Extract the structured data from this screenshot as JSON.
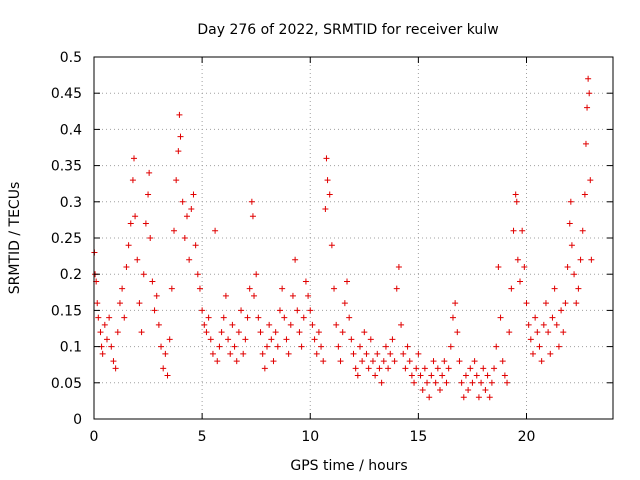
{
  "chart_data": {
    "type": "scatter",
    "title": "Day 276 of 2022, SRMTID for receiver kulw",
    "xlabel": "GPS time / hours",
    "ylabel": "SRMTID / TECUs",
    "xlim": [
      0,
      24
    ],
    "ylim": [
      0,
      0.5
    ],
    "grid": true,
    "marker": "+",
    "color": "#e00000",
    "x_ticks": [
      "0",
      "5",
      "10",
      "15",
      "20"
    ],
    "y_ticks": [
      "0",
      "0.05",
      "0.1",
      "0.15",
      "0.2",
      "0.25",
      "0.3",
      "0.35",
      "0.4",
      "0.45",
      "0.5"
    ],
    "series": [
      {
        "name": "SRMTID",
        "points": [
          [
            0.02,
            0.23
          ],
          [
            0.05,
            0.2
          ],
          [
            0.1,
            0.19
          ],
          [
            0.15,
            0.16
          ],
          [
            0.2,
            0.14
          ],
          [
            0.3,
            0.12
          ],
          [
            0.35,
            0.1
          ],
          [
            0.4,
            0.09
          ],
          [
            0.5,
            0.13
          ],
          [
            0.6,
            0.11
          ],
          [
            0.7,
            0.14
          ],
          [
            0.8,
            0.1
          ],
          [
            0.9,
            0.08
          ],
          [
            1.0,
            0.07
          ],
          [
            1.1,
            0.12
          ],
          [
            1.2,
            0.16
          ],
          [
            1.3,
            0.18
          ],
          [
            1.4,
            0.14
          ],
          [
            1.5,
            0.21
          ],
          [
            1.6,
            0.24
          ],
          [
            1.7,
            0.27
          ],
          [
            1.8,
            0.33
          ],
          [
            1.85,
            0.36
          ],
          [
            1.9,
            0.28
          ],
          [
            2.0,
            0.22
          ],
          [
            2.1,
            0.16
          ],
          [
            2.2,
            0.12
          ],
          [
            2.3,
            0.2
          ],
          [
            2.4,
            0.27
          ],
          [
            2.5,
            0.31
          ],
          [
            2.55,
            0.34
          ],
          [
            2.6,
            0.25
          ],
          [
            2.7,
            0.19
          ],
          [
            2.8,
            0.15
          ],
          [
            2.9,
            0.17
          ],
          [
            3.0,
            0.13
          ],
          [
            3.1,
            0.1
          ],
          [
            3.2,
            0.07
          ],
          [
            3.3,
            0.09
          ],
          [
            3.4,
            0.06
          ],
          [
            3.5,
            0.11
          ],
          [
            3.6,
            0.18
          ],
          [
            3.7,
            0.26
          ],
          [
            3.8,
            0.33
          ],
          [
            3.9,
            0.37
          ],
          [
            3.95,
            0.42
          ],
          [
            4.0,
            0.39
          ],
          [
            4.1,
            0.3
          ],
          [
            4.2,
            0.25
          ],
          [
            4.3,
            0.28
          ],
          [
            4.4,
            0.22
          ],
          [
            4.5,
            0.29
          ],
          [
            4.6,
            0.31
          ],
          [
            4.7,
            0.24
          ],
          [
            4.8,
            0.2
          ],
          [
            4.9,
            0.18
          ],
          [
            5.0,
            0.15
          ],
          [
            5.1,
            0.13
          ],
          [
            5.2,
            0.12
          ],
          [
            5.3,
            0.14
          ],
          [
            5.4,
            0.11
          ],
          [
            5.5,
            0.09
          ],
          [
            5.6,
            0.26
          ],
          [
            5.7,
            0.08
          ],
          [
            5.8,
            0.1
          ],
          [
            5.9,
            0.12
          ],
          [
            6.0,
            0.14
          ],
          [
            6.1,
            0.17
          ],
          [
            6.2,
            0.11
          ],
          [
            6.3,
            0.09
          ],
          [
            6.4,
            0.13
          ],
          [
            6.5,
            0.1
          ],
          [
            6.6,
            0.08
          ],
          [
            6.7,
            0.12
          ],
          [
            6.8,
            0.15
          ],
          [
            6.9,
            0.09
          ],
          [
            7.0,
            0.11
          ],
          [
            7.1,
            0.14
          ],
          [
            7.2,
            0.18
          ],
          [
            7.3,
            0.3
          ],
          [
            7.35,
            0.28
          ],
          [
            7.4,
            0.17
          ],
          [
            7.5,
            0.2
          ],
          [
            7.6,
            0.14
          ],
          [
            7.7,
            0.12
          ],
          [
            7.8,
            0.09
          ],
          [
            7.9,
            0.07
          ],
          [
            8.0,
            0.1
          ],
          [
            8.1,
            0.13
          ],
          [
            8.2,
            0.11
          ],
          [
            8.3,
            0.08
          ],
          [
            8.4,
            0.12
          ],
          [
            8.5,
            0.1
          ],
          [
            8.6,
            0.15
          ],
          [
            8.7,
            0.18
          ],
          [
            8.8,
            0.14
          ],
          [
            8.9,
            0.11
          ],
          [
            9.0,
            0.09
          ],
          [
            9.1,
            0.13
          ],
          [
            9.2,
            0.17
          ],
          [
            9.3,
            0.22
          ],
          [
            9.4,
            0.15
          ],
          [
            9.5,
            0.12
          ],
          [
            9.6,
            0.1
          ],
          [
            9.7,
            0.14
          ],
          [
            9.8,
            0.19
          ],
          [
            9.9,
            0.17
          ],
          [
            10.0,
            0.15
          ],
          [
            10.1,
            0.13
          ],
          [
            10.2,
            0.11
          ],
          [
            10.3,
            0.09
          ],
          [
            10.4,
            0.12
          ],
          [
            10.5,
            0.1
          ],
          [
            10.6,
            0.08
          ],
          [
            10.7,
            0.29
          ],
          [
            10.75,
            0.36
          ],
          [
            10.8,
            0.33
          ],
          [
            10.9,
            0.31
          ],
          [
            11.0,
            0.24
          ],
          [
            11.1,
            0.18
          ],
          [
            11.2,
            0.13
          ],
          [
            11.3,
            0.1
          ],
          [
            11.4,
            0.08
          ],
          [
            11.5,
            0.12
          ],
          [
            11.6,
            0.16
          ],
          [
            11.7,
            0.19
          ],
          [
            11.8,
            0.14
          ],
          [
            11.9,
            0.11
          ],
          [
            12.0,
            0.09
          ],
          [
            12.1,
            0.07
          ],
          [
            12.2,
            0.06
          ],
          [
            12.3,
            0.1
          ],
          [
            12.4,
            0.08
          ],
          [
            12.5,
            0.12
          ],
          [
            12.6,
            0.09
          ],
          [
            12.7,
            0.07
          ],
          [
            12.8,
            0.11
          ],
          [
            12.9,
            0.08
          ],
          [
            13.0,
            0.06
          ],
          [
            13.1,
            0.09
          ],
          [
            13.2,
            0.07
          ],
          [
            13.3,
            0.05
          ],
          [
            13.4,
            0.08
          ],
          [
            13.5,
            0.1
          ],
          [
            13.6,
            0.07
          ],
          [
            13.7,
            0.09
          ],
          [
            13.8,
            0.11
          ],
          [
            13.9,
            0.08
          ],
          [
            14.0,
            0.18
          ],
          [
            14.1,
            0.21
          ],
          [
            14.2,
            0.13
          ],
          [
            14.3,
            0.09
          ],
          [
            14.4,
            0.07
          ],
          [
            14.5,
            0.1
          ],
          [
            14.6,
            0.08
          ],
          [
            14.7,
            0.06
          ],
          [
            14.8,
            0.05
          ],
          [
            14.9,
            0.07
          ],
          [
            15.0,
            0.09
          ],
          [
            15.1,
            0.06
          ],
          [
            15.2,
            0.04
          ],
          [
            15.3,
            0.07
          ],
          [
            15.4,
            0.05
          ],
          [
            15.5,
            0.03
          ],
          [
            15.6,
            0.06
          ],
          [
            15.7,
            0.08
          ],
          [
            15.8,
            0.05
          ],
          [
            15.9,
            0.07
          ],
          [
            16.0,
            0.04
          ],
          [
            16.1,
            0.06
          ],
          [
            16.2,
            0.08
          ],
          [
            16.3,
            0.05
          ],
          [
            16.4,
            0.07
          ],
          [
            16.5,
            0.1
          ],
          [
            16.6,
            0.14
          ],
          [
            16.7,
            0.16
          ],
          [
            16.8,
            0.12
          ],
          [
            16.9,
            0.08
          ],
          [
            17.0,
            0.05
          ],
          [
            17.1,
            0.03
          ],
          [
            17.2,
            0.06
          ],
          [
            17.3,
            0.04
          ],
          [
            17.4,
            0.07
          ],
          [
            17.5,
            0.05
          ],
          [
            17.6,
            0.08
          ],
          [
            17.7,
            0.06
          ],
          [
            17.8,
            0.03
          ],
          [
            17.9,
            0.05
          ],
          [
            18.0,
            0.07
          ],
          [
            18.1,
            0.04
          ],
          [
            18.2,
            0.06
          ],
          [
            18.3,
            0.03
          ],
          [
            18.4,
            0.05
          ],
          [
            18.5,
            0.07
          ],
          [
            18.6,
            0.1
          ],
          [
            18.7,
            0.21
          ],
          [
            18.8,
            0.14
          ],
          [
            18.9,
            0.08
          ],
          [
            19.0,
            0.06
          ],
          [
            19.1,
            0.05
          ],
          [
            19.2,
            0.12
          ],
          [
            19.3,
            0.18
          ],
          [
            19.4,
            0.26
          ],
          [
            19.5,
            0.31
          ],
          [
            19.55,
            0.3
          ],
          [
            19.6,
            0.22
          ],
          [
            19.7,
            0.19
          ],
          [
            19.8,
            0.26
          ],
          [
            19.9,
            0.21
          ],
          [
            20.0,
            0.16
          ],
          [
            20.1,
            0.13
          ],
          [
            20.2,
            0.11
          ],
          [
            20.3,
            0.09
          ],
          [
            20.4,
            0.14
          ],
          [
            20.5,
            0.12
          ],
          [
            20.6,
            0.1
          ],
          [
            20.7,
            0.08
          ],
          [
            20.8,
            0.13
          ],
          [
            20.9,
            0.16
          ],
          [
            21.0,
            0.12
          ],
          [
            21.1,
            0.09
          ],
          [
            21.2,
            0.14
          ],
          [
            21.3,
            0.18
          ],
          [
            21.4,
            0.13
          ],
          [
            21.5,
            0.1
          ],
          [
            21.6,
            0.15
          ],
          [
            21.7,
            0.12
          ],
          [
            21.8,
            0.16
          ],
          [
            21.9,
            0.21
          ],
          [
            22.0,
            0.27
          ],
          [
            22.05,
            0.3
          ],
          [
            22.1,
            0.24
          ],
          [
            22.2,
            0.2
          ],
          [
            22.3,
            0.16
          ],
          [
            22.4,
            0.18
          ],
          [
            22.5,
            0.22
          ],
          [
            22.6,
            0.26
          ],
          [
            22.7,
            0.31
          ],
          [
            22.75,
            0.38
          ],
          [
            22.8,
            0.43
          ],
          [
            22.85,
            0.47
          ],
          [
            22.9,
            0.45
          ],
          [
            22.95,
            0.33
          ],
          [
            23.0,
            0.22
          ]
        ]
      }
    ]
  }
}
